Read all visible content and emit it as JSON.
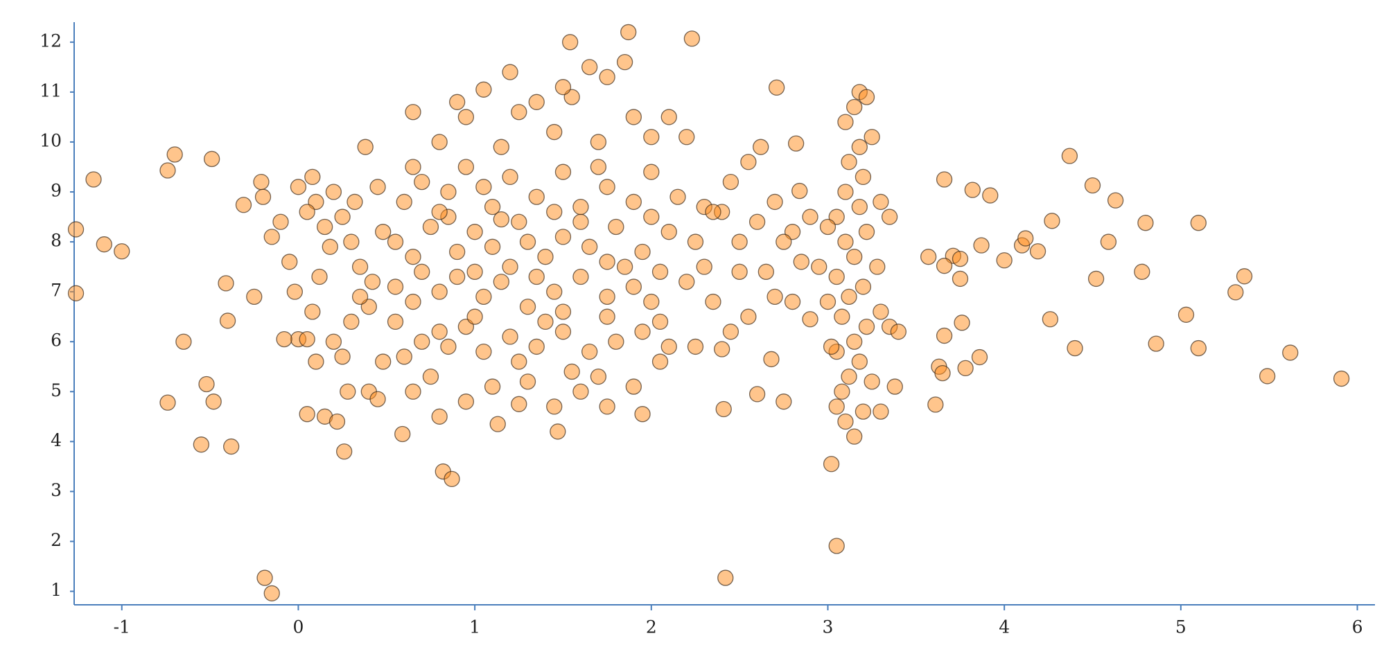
{
  "chart_data": {
    "type": "scatter",
    "x": [
      -1.26,
      -1.26,
      -1.16,
      -1.1,
      -1.0,
      -0.74,
      -0.7,
      -0.49,
      -0.65,
      -0.74,
      -0.52,
      -0.48,
      -0.55,
      -0.38,
      -0.41,
      -0.4,
      -0.31,
      -0.21,
      -0.19,
      -0.15,
      2.42,
      3.05,
      3.02,
      2.41,
      2.23,
      1.87,
      1.54,
      2.71,
      2.82,
      2.84,
      3.66,
      3.82,
      3.92,
      3.71,
      3.57,
      3.66,
      3.75,
      3.75,
      3.87,
      4.0,
      4.1,
      4.19,
      4.12,
      4.27,
      4.37,
      4.5,
      4.63,
      4.59,
      4.52,
      4.8,
      4.78,
      5.1,
      4.26,
      4.4,
      4.86,
      5.03,
      5.1,
      5.31,
      5.36,
      5.49,
      5.62,
      5.91,
      3.76,
      3.66,
      3.63,
      3.65,
      3.78,
      3.86,
      3.61,
      2.95,
      3.05,
      3.1,
      3.15,
      3.2,
      3.08,
      3.12,
      3.18,
      3.25,
      3.05,
      3.15,
      3.22,
      3.08,
      3.3,
      3.12,
      3.2,
      3.05,
      3.28,
      3.15,
      3.1,
      3.22,
      3.05,
      3.18,
      3.3,
      3.1,
      3.2,
      3.12,
      3.18,
      3.25,
      3.1,
      3.15,
      3.18,
      3.22,
      3.35,
      3.4,
      3.38,
      3.0,
      3.0,
      3.3,
      3.02,
      3.35,
      -0.25,
      -0.2,
      -0.15,
      -0.1,
      -0.05,
      0.0,
      0.05,
      -0.02,
      0.1,
      0.08,
      0.0,
      0.05,
      0.15,
      0.22,
      0.26,
      0.2,
      0.25,
      0.3,
      0.12,
      0.18,
      0.25,
      0.3,
      0.35,
      0.4,
      0.45,
      0.4,
      0.45,
      0.38,
      0.1,
      0.08,
      0.2,
      0.28,
      0.35,
      0.42,
      0.48,
      0.32,
      0.15,
      0.05,
      -0.08,
      0.48,
      0.59,
      0.82,
      0.87,
      1.13,
      1.47,
      0.8,
      1.25,
      1.45,
      1.75,
      1.95,
      0.65,
      0.95,
      1.1,
      1.6,
      1.9,
      2.05,
      0.75,
      1.3,
      1.55,
      1.7,
      0.6,
      0.7,
      0.85,
      0.95,
      1.05,
      1.2,
      1.35,
      1.5,
      1.65,
      1.8,
      1.95,
      2.1,
      2.25,
      0.55,
      1.0,
      1.4,
      1.75,
      2.05,
      0.8,
      1.25,
      0.55,
      0.65,
      0.8,
      0.9,
      1.05,
      1.15,
      1.3,
      1.45,
      1.6,
      1.75,
      1.9,
      2.05,
      2.2,
      0.7,
      1.2,
      1.5,
      1.85,
      2.0,
      1.0,
      1.35,
      0.55,
      0.65,
      0.75,
      0.9,
      1.0,
      1.1,
      1.25,
      1.4,
      1.5,
      1.65,
      1.8,
      1.95,
      2.1,
      2.25,
      0.85,
      1.3,
      1.6,
      1.75,
      2.0,
      1.15,
      0.6,
      0.7,
      0.85,
      0.95,
      1.1,
      1.2,
      1.35,
      1.5,
      1.6,
      1.75,
      1.9,
      2.0,
      2.15,
      2.3,
      0.8,
      1.05,
      1.45,
      1.7,
      2.4,
      0.65,
      0.65,
      0.8,
      0.95,
      1.05,
      1.15,
      1.25,
      1.35,
      1.45,
      1.55,
      1.65,
      1.75,
      1.85,
      1.9,
      2.0,
      2.1,
      2.2,
      1.2,
      1.5,
      0.9,
      1.7,
      2.3,
      2.35,
      2.4,
      2.45,
      2.5,
      2.55,
      2.6,
      2.65,
      2.7,
      2.68,
      2.75,
      2.8,
      2.85,
      2.9,
      2.5,
      2.55,
      2.62,
      2.7,
      2.45,
      2.35,
      2.8,
      2.6,
      2.9,
      2.75
    ],
    "values": [
      8.25,
      6.97,
      9.25,
      7.95,
      7.81,
      9.43,
      9.75,
      9.66,
      6.0,
      4.78,
      5.15,
      4.8,
      3.94,
      3.9,
      7.17,
      6.42,
      8.74,
      9.2,
      1.27,
      0.96,
      1.27,
      1.91,
      3.55,
      4.65,
      12.07,
      12.2,
      12.0,
      11.09,
      9.97,
      9.02,
      9.25,
      9.04,
      8.93,
      7.72,
      7.7,
      7.52,
      7.66,
      7.26,
      7.93,
      7.63,
      7.93,
      7.81,
      8.07,
      8.42,
      9.72,
      9.13,
      8.83,
      8.0,
      7.26,
      8.38,
      7.4,
      8.38,
      6.45,
      5.87,
      5.96,
      6.54,
      5.87,
      6.99,
      7.31,
      5.31,
      5.78,
      5.26,
      6.38,
      6.12,
      5.5,
      5.37,
      5.47,
      5.69,
      4.74,
      7.5,
      4.7,
      4.4,
      4.1,
      4.6,
      5.0,
      5.3,
      5.6,
      5.2,
      5.8,
      6.0,
      6.3,
      6.5,
      6.6,
      6.9,
      7.1,
      7.3,
      7.5,
      7.7,
      8.0,
      8.2,
      8.5,
      8.7,
      8.8,
      9.0,
      9.3,
      9.6,
      9.9,
      10.1,
      10.4,
      10.7,
      11.0,
      10.9,
      6.3,
      6.2,
      5.1,
      6.8,
      8.3,
      4.6,
      5.9,
      8.5,
      6.9,
      8.9,
      8.1,
      8.4,
      7.6,
      6.05,
      6.05,
      7.0,
      8.8,
      9.3,
      9.1,
      4.55,
      4.5,
      4.4,
      3.8,
      6.0,
      5.7,
      6.4,
      7.3,
      7.9,
      8.5,
      8.0,
      7.5,
      5.0,
      4.85,
      6.7,
      9.1,
      9.9,
      5.6,
      6.6,
      9.0,
      5.0,
      6.9,
      7.2,
      8.2,
      8.8,
      8.3,
      8.6,
      6.05,
      5.6,
      4.15,
      3.4,
      3.25,
      4.35,
      4.2,
      4.5,
      4.75,
      4.7,
      4.7,
      4.55,
      5.0,
      4.8,
      5.1,
      5.0,
      5.1,
      5.6,
      5.3,
      5.2,
      5.4,
      5.3,
      5.7,
      6.0,
      5.9,
      6.3,
      5.8,
      6.1,
      5.9,
      6.2,
      5.8,
      6.0,
      6.2,
      5.9,
      5.9,
      6.4,
      6.5,
      6.4,
      6.5,
      6.4,
      6.2,
      5.6,
      7.1,
      6.8,
      7.0,
      7.3,
      6.9,
      7.2,
      6.7,
      7.0,
      7.3,
      6.9,
      7.1,
      7.4,
      7.2,
      7.4,
      7.5,
      6.6,
      7.5,
      6.8,
      7.4,
      7.3,
      8.0,
      7.7,
      8.3,
      7.8,
      8.2,
      7.9,
      8.4,
      7.7,
      8.1,
      7.9,
      8.3,
      7.8,
      8.2,
      8.0,
      8.5,
      8.0,
      8.4,
      7.6,
      8.5,
      8.45,
      8.8,
      9.2,
      9.0,
      9.5,
      8.7,
      9.3,
      8.9,
      9.4,
      8.7,
      9.1,
      8.8,
      9.4,
      8.9,
      8.7,
      8.6,
      9.1,
      8.6,
      9.5,
      8.6,
      9.5,
      10.6,
      10.0,
      10.5,
      11.05,
      9.9,
      10.6,
      10.8,
      10.2,
      10.9,
      11.5,
      11.3,
      11.6,
      10.5,
      10.1,
      10.5,
      10.1,
      11.4,
      11.1,
      10.8,
      10.0,
      7.5,
      6.8,
      5.85,
      6.2,
      7.4,
      6.5,
      4.95,
      7.4,
      6.9,
      5.65,
      4.8,
      6.8,
      7.6,
      8.5,
      8.0,
      9.6,
      9.9,
      8.8,
      9.2,
      8.6,
      8.2,
      8.4,
      6.45,
      8.0
    ],
    "color": "#ff8c1a",
    "xlim": [
      -1.27,
      6.1
    ],
    "ylim": [
      0.73,
      12.4
    ],
    "xticks": [
      -1,
      0,
      1,
      2,
      3,
      4,
      5,
      6
    ],
    "yticks": [
      1,
      2,
      3,
      4,
      5,
      6,
      7,
      8,
      9,
      10,
      11,
      12
    ]
  }
}
